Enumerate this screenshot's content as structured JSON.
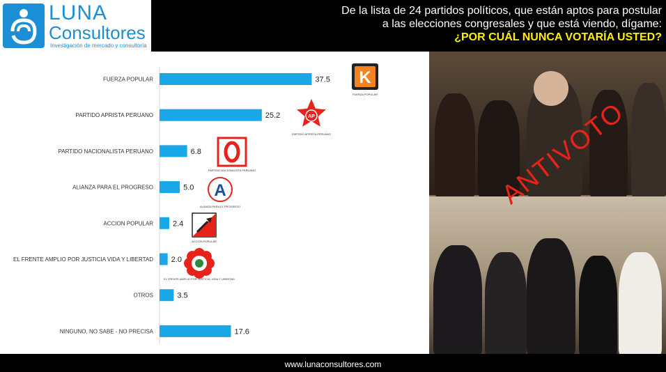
{
  "brand": {
    "name_line1": "LUNA",
    "name_line2": "Consultores",
    "tagline": "Investigación de mercado y consultoría",
    "color": "#1b8fd6"
  },
  "question": {
    "line1": "De la lista de 24 partidos políticos, que están aptos para postular",
    "line2": "a las elecciones congresales y que está viendo, dígame:",
    "line3": "¿POR CUÁL NUNCA VOTARÍA USTED?"
  },
  "photo": {
    "overlay_text": "ANTIVOTO",
    "overlay_color": "#e5231b"
  },
  "footer": {
    "url": "www.lunaconsultores.com"
  },
  "chart_data": {
    "type": "bar",
    "orientation": "horizontal",
    "categories": [
      "FUERZA POPULAR",
      "PARTIDO APRISTA PERUANO",
      "PARTIDO NACIONALISTA PERUANO",
      "ALIANZA PARA EL PROGRESO",
      "ACCION POPULAR",
      "EL FRENTE AMPLIO POR JUSTICIA VIDA Y LIBERTAD",
      "OTROS",
      "NINGUNO, NO SABE - NO PRECISA"
    ],
    "values": [
      37.5,
      25.2,
      6.8,
      5.0,
      2.4,
      2.0,
      3.5,
      17.6
    ],
    "value_labels": [
      "37.5",
      "25.2",
      "6.8",
      "5.0",
      "2.4",
      "2.0",
      "3.5",
      "17.6"
    ],
    "bar_color": "#1aa7e8",
    "xlim": [
      0,
      40
    ],
    "grid": false,
    "party_logos": [
      {
        "symbol": "K",
        "caption": "FUERZA POPULAR",
        "color": "#f58220"
      },
      {
        "symbol": "APRA",
        "caption": "PARTIDO APRISTA PERUANO",
        "color": "#e5231b"
      },
      {
        "symbol": "O",
        "caption": "PARTIDO NACIONALISTA PERUANO",
        "color": "#e5231b"
      },
      {
        "symbol": "A",
        "caption": "ALIANZA PARA EL PROGRESO",
        "color": "#1b4fa0"
      },
      {
        "symbol": "shovel",
        "caption": "ACCION POPULAR",
        "color": "#e5231b"
      },
      {
        "symbol": "flower",
        "caption": "EL FRENTE AMPLIO POR JUSTICIA, VIDA Y LIBERTAD",
        "color": "#e5231b"
      }
    ]
  }
}
